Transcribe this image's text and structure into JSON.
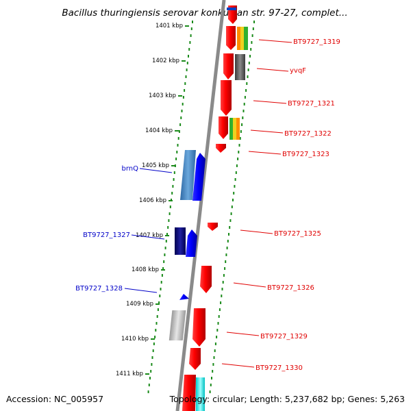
{
  "title": "Bacillus thuringiensis serovar konkukian str. 97-27, complet...",
  "footer": {
    "accession": "Accession: NC_005957",
    "topology": "Topology: circular; Length: 5,237,682 bp; Genes: 5,263"
  },
  "colors": {
    "forward_label": "#e00000",
    "reverse_label": "#0000c8",
    "backbone": "#909090",
    "tick": "#1a8a1a"
  },
  "ruler": [
    "1401 kbp",
    "1402 kbp",
    "1403 kbp",
    "1404 kbp",
    "1405 kbp",
    "1406 kbp",
    "1407 kbp",
    "1408 kbp",
    "1409 kbp",
    "1410 kbp",
    "1411 kbp"
  ],
  "genes_forward_labels": [
    "BT9727_1319",
    "yvqF",
    "BT9727_1321",
    "BT9727_1322",
    "BT9727_1323",
    "BT9727_1325",
    "BT9727_1326",
    "BT9727_1329",
    "BT9727_1330"
  ],
  "genes_reverse_labels": [
    "brnQ",
    "BT9727_1327",
    "BT9727_1328"
  ]
}
